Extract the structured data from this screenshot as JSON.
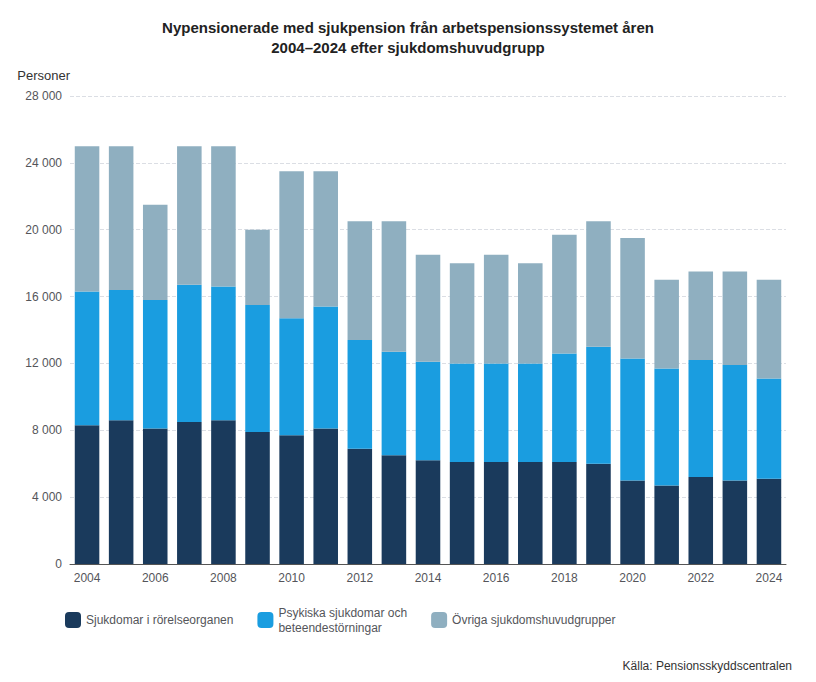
{
  "chart_data": {
    "type": "bar",
    "stacked": true,
    "title": "Nypensionerade med sjukpension från arbetspensionssystemet åren\n2004–2024 efter sjukdomshuvudgrupp",
    "ylabel": "Personer",
    "annotations": [
      "Källa: Pensionsskyddscentralen"
    ],
    "categories": [
      "2004",
      null,
      "2006",
      null,
      "2008",
      null,
      "2010",
      null,
      "2012",
      null,
      "2014",
      null,
      "2016",
      null,
      "2018",
      null,
      "2020",
      null,
      "2022",
      null,
      "2024"
    ],
    "series": [
      {
        "name": "Sjukdomar i rörelseorganen",
        "color": "#1a3a5c",
        "values": [
          8300,
          8600,
          8100,
          8500,
          8600,
          7900,
          7700,
          8100,
          6900,
          6500,
          6200,
          6100,
          6100,
          6100,
          6100,
          6000,
          5000,
          4700,
          5200,
          5000,
          5100
        ]
      },
      {
        "name": "Psykiska sjukdomar och\nbeteendestörningar",
        "color": "#1a9de0",
        "values": [
          8000,
          7800,
          7700,
          8200,
          8000,
          7600,
          7000,
          7300,
          6500,
          6200,
          5900,
          5900,
          5900,
          5900,
          6500,
          7000,
          7300,
          7000,
          7000,
          6900,
          6000
        ]
      },
      {
        "name": "Övriga sjukdomshuvudgrupper",
        "color": "#8fafc0",
        "values": [
          8700,
          8600,
          5700,
          8300,
          8400,
          4500,
          8800,
          8100,
          7100,
          7800,
          6400,
          6000,
          6500,
          6000,
          7100,
          7500,
          7200,
          5300,
          5300,
          5600,
          5900
        ]
      }
    ],
    "ylim": [
      0,
      28000
    ],
    "yticks": [
      0,
      {
        "value": 4000,
        "label": "4 000"
      },
      {
        "value": 8000,
        "label": "8 000"
      },
      {
        "value": 12000,
        "label": "12 000"
      },
      {
        "value": 16000,
        "label": "16 000"
      },
      {
        "value": 20000,
        "label": "20 000"
      },
      {
        "value": 24000,
        "label": "24 000"
      },
      {
        "value": 28000,
        "label": "28 000"
      }
    ],
    "grid": true,
    "legend": "bottom"
  }
}
